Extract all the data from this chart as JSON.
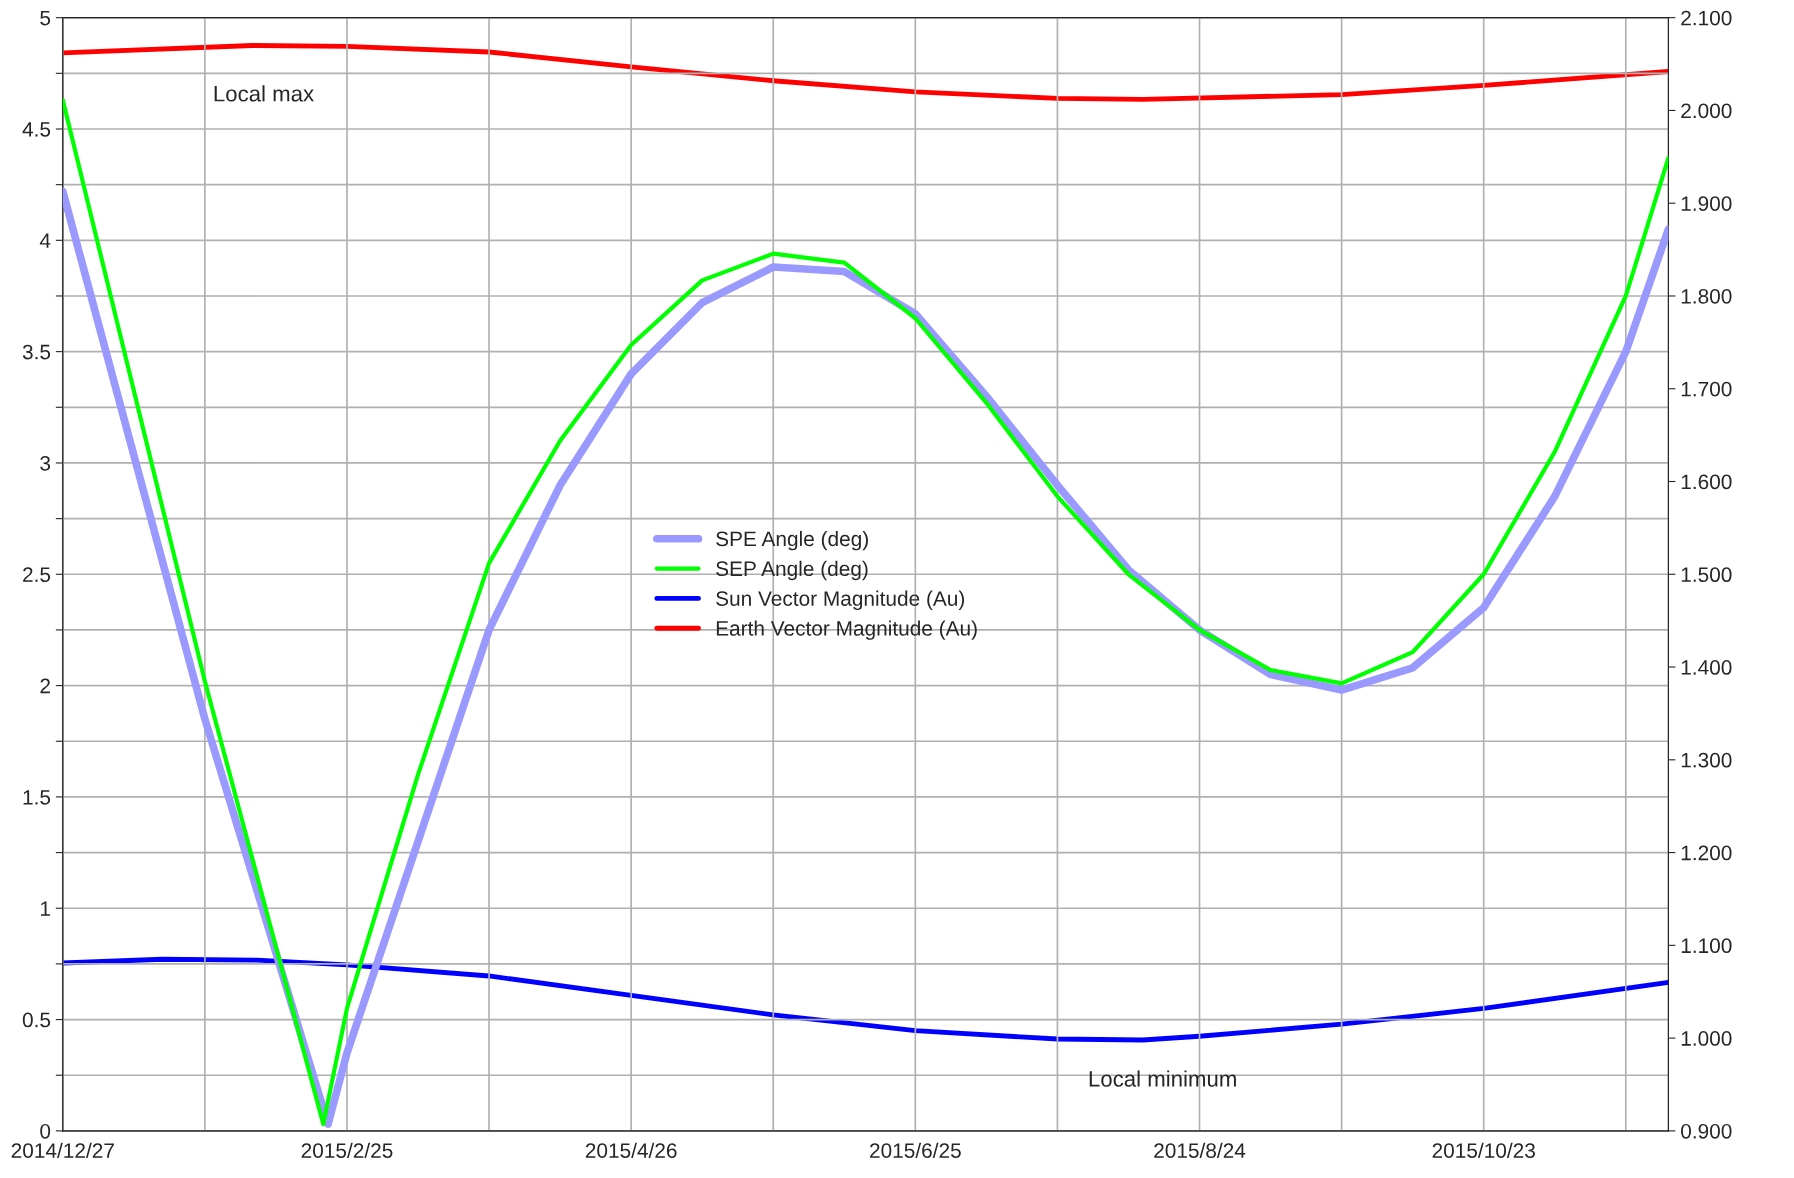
{
  "chart_data": {
    "type": "line",
    "xlim": [
      "2014-12-27",
      "2015-12-01"
    ],
    "xticks": [
      {
        "value": "2014-12-27",
        "label": "2014/12/27"
      },
      {
        "value": "2015-01-26",
        "label": null
      },
      {
        "value": "2015-02-25",
        "label": "2015/2/25"
      },
      {
        "value": "2015-03-27",
        "label": null
      },
      {
        "value": "2015-04-26",
        "label": "2015/4/26"
      },
      {
        "value": "2015-05-26",
        "label": null
      },
      {
        "value": "2015-06-25",
        "label": "2015/6/25"
      },
      {
        "value": "2015-07-25",
        "label": null
      },
      {
        "value": "2015-08-24",
        "label": "2015/8/24"
      },
      {
        "value": "2015-09-23",
        "label": null
      },
      {
        "value": "2015-10-23",
        "label": "2015/10/23"
      },
      {
        "value": "2015-11-22",
        "label": null
      }
    ],
    "ylim": [
      0,
      5
    ],
    "yticks": [
      0,
      {
        "value": 0.25,
        "label": null
      },
      0.5,
      {
        "value": 0.75,
        "label": null
      },
      1,
      {
        "value": 1.25,
        "label": null
      },
      1.5,
      {
        "value": 1.75,
        "label": null
      },
      2,
      {
        "value": 2.25,
        "label": null
      },
      2.5,
      {
        "value": 2.75,
        "label": null
      },
      3,
      {
        "value": 3.25,
        "label": null
      },
      3.5,
      {
        "value": 3.75,
        "label": null
      },
      4,
      {
        "value": 4.25,
        "label": null
      },
      4.5,
      {
        "value": 4.75,
        "label": null
      },
      5
    ],
    "y2lim": [
      0.9,
      2.1
    ],
    "y2ticks": [
      {
        "value": 0.9,
        "label": "0.900"
      },
      {
        "value": 1.0,
        "label": "1.000"
      },
      {
        "value": 1.1,
        "label": "1.100"
      },
      {
        "value": 1.2,
        "label": "1.200"
      },
      {
        "value": 1.3,
        "label": "1.300"
      },
      {
        "value": 1.4,
        "label": "1.400"
      },
      {
        "value": 1.5,
        "label": "1.500"
      },
      {
        "value": 1.6,
        "label": "1.600"
      },
      {
        "value": 1.7,
        "label": "1.700"
      },
      {
        "value": 1.8,
        "label": "1.800"
      },
      {
        "value": 1.9,
        "label": "1.900"
      },
      {
        "value": 2.0,
        "label": "2.000"
      },
      {
        "value": 2.1,
        "label": "2.100"
      }
    ],
    "grid": true,
    "legend": "center",
    "series": [
      {
        "name": "SPE Angle (deg)",
        "color": "#9999ff",
        "x": [
          "2014-12-27",
          "2015-01-26",
          "2015-02-21",
          "2015-02-25",
          "2015-03-12",
          "2015-03-27",
          "2015-04-11",
          "2015-04-26",
          "2015-05-11",
          "2015-05-26",
          "2015-06-10",
          "2015-06-25",
          "2015-07-10",
          "2015-07-25",
          "2015-08-09",
          "2015-08-24",
          "2015-09-08",
          "2015-09-23",
          "2015-10-08",
          "2015-10-23",
          "2015-11-07",
          "2015-11-22",
          "2015-12-01"
        ],
        "values": [
          4.22,
          1.85,
          0.03,
          0.35,
          1.3,
          2.25,
          2.9,
          3.4,
          3.72,
          3.88,
          3.86,
          3.67,
          3.3,
          2.9,
          2.52,
          2.25,
          2.05,
          1.98,
          2.08,
          2.35,
          2.85,
          3.5,
          4.05
        ]
      },
      {
        "name": "SEP Angle (deg)",
        "color": "#00ff00",
        "x": [
          "2014-12-27",
          "2015-01-26",
          "2015-02-20",
          "2015-02-25",
          "2015-03-12",
          "2015-03-27",
          "2015-04-11",
          "2015-04-26",
          "2015-05-11",
          "2015-05-26",
          "2015-06-10",
          "2015-06-25",
          "2015-07-10",
          "2015-07-25",
          "2015-08-09",
          "2015-08-24",
          "2015-09-08",
          "2015-09-23",
          "2015-10-08",
          "2015-10-23",
          "2015-11-07",
          "2015-11-22",
          "2015-12-01"
        ],
        "values": [
          4.63,
          2.02,
          0.03,
          0.55,
          1.6,
          2.55,
          3.1,
          3.53,
          3.82,
          3.94,
          3.9,
          3.65,
          3.27,
          2.85,
          2.5,
          2.25,
          2.07,
          2.01,
          2.15,
          2.5,
          3.05,
          3.75,
          4.37
        ]
      },
      {
        "name": "Sun Vector Magnitude (Au)",
        "color": "#0000ff",
        "axis": "y2",
        "x": [
          "2014-12-27",
          "2015-01-17",
          "2015-02-06",
          "2015-02-25",
          "2015-03-27",
          "2015-04-26",
          "2015-05-26",
          "2015-06-25",
          "2015-07-25",
          "2015-08-12",
          "2015-08-24",
          "2015-09-23",
          "2015-10-23",
          "2015-12-01"
        ],
        "values": [
          1.081,
          1.085,
          1.084,
          1.079,
          1.067,
          1.046,
          1.025,
          1.008,
          0.999,
          0.998,
          1.002,
          1.015,
          1.032,
          1.06
        ]
      },
      {
        "name": "Earth Vector Magnitude (Au)",
        "color": "#ff0000",
        "axis": "y2",
        "x": [
          "2014-12-27",
          "2015-02-05",
          "2015-02-25",
          "2015-03-27",
          "2015-04-26",
          "2015-05-26",
          "2015-06-25",
          "2015-07-25",
          "2015-08-12",
          "2015-09-23",
          "2015-10-23",
          "2015-12-01"
        ],
        "values": [
          2.062,
          2.07,
          2.069,
          2.063,
          2.047,
          2.032,
          2.02,
          2.013,
          2.012,
          2.017,
          2.027,
          2.042
        ]
      }
    ],
    "annotations": [
      "Local max",
      "Local minimum"
    ]
  }
}
